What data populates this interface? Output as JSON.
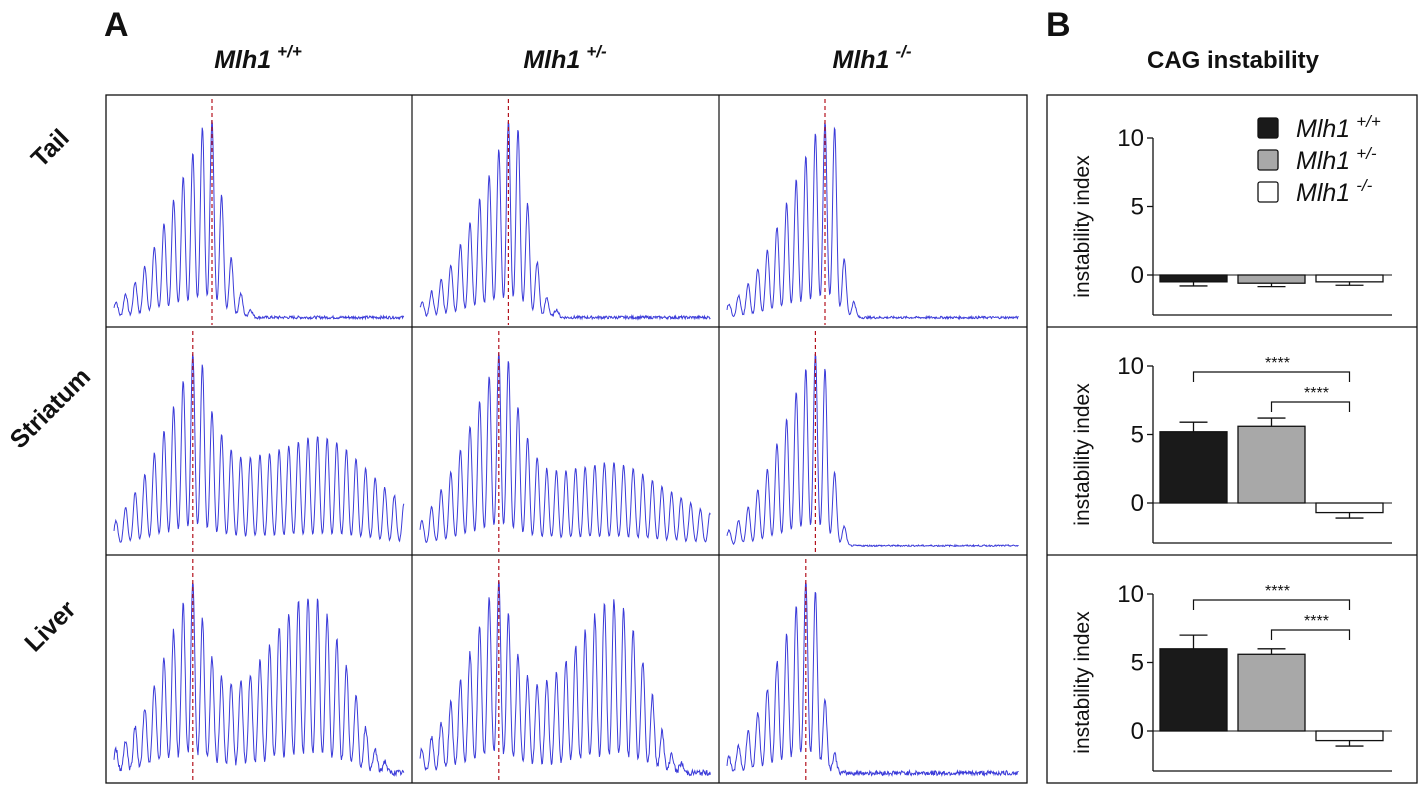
{
  "panels": {
    "a_label": "A",
    "b_label": "B"
  },
  "genotypes": [
    {
      "base": "Mlh1",
      "sup": "+/+"
    },
    {
      "base": "Mlh1",
      "sup": "+/-"
    },
    {
      "base": "Mlh1",
      "sup": "-/-"
    }
  ],
  "tissues": [
    "Tail",
    "Striatum",
    "Liver"
  ],
  "panel_b": {
    "title": "CAG instability",
    "ylabel": "instability index",
    "yticks": [
      "10",
      "5",
      "0"
    ]
  },
  "colors": {
    "trace": "#3b3bd9",
    "reference_line": "#b3121d",
    "bar_wt": "#1a1a1a",
    "bar_het": "#a8a8a8",
    "bar_ko": "#ffffff"
  },
  "chart_data": [
    {
      "type": "line",
      "description_of_traces": "capillary electrophoresis CAG repeat traces, relative peak heights",
      "rows": [
        {
          "tissue": "Tail",
          "traces": [
            {
              "genotype": "+/+",
              "peaks": [
                0.08,
                0.12,
                0.18,
                0.26,
                0.36,
                0.48,
                0.6,
                0.72,
                0.84,
                0.97,
                1.0,
                0.62,
                0.3,
                0.12,
                0.04
              ],
              "expansion": [],
              "noise": 0.015
            },
            {
              "genotype": "+/-",
              "peaks": [
                0.08,
                0.13,
                0.19,
                0.27,
                0.37,
                0.48,
                0.6,
                0.72,
                0.85,
                1.0,
                0.96,
                0.58,
                0.28,
                0.1,
                0.04
              ],
              "expansion": [],
              "noise": 0.015
            },
            {
              "genotype": "-/-",
              "peaks": [
                0.07,
                0.11,
                0.17,
                0.25,
                0.34,
                0.46,
                0.58,
                0.7,
                0.82,
                0.94,
                1.0,
                0.97,
                0.3,
                0.08
              ],
              "expansion": [],
              "noise": 0.012
            }
          ]
        },
        {
          "tissue": "Striatum",
          "traces": [
            {
              "genotype": "+/+",
              "peaks": [
                0.13,
                0.2,
                0.28,
                0.37,
                0.48,
                0.6,
                0.72,
                0.86,
                1.0,
                0.94,
                0.7,
                0.58,
                0.5
              ],
              "expansion": [
                0.46,
                0.46,
                0.47,
                0.48,
                0.5,
                0.52,
                0.54,
                0.56,
                0.57,
                0.56,
                0.54,
                0.5,
                0.45,
                0.4,
                0.35,
                0.3,
                0.26,
                0.22,
                0.19,
                0.16,
                0.13,
                0.11,
                0.09,
                0.08,
                0.07
              ],
              "noise": 0.01
            },
            {
              "genotype": "+/-",
              "peaks": [
                0.13,
                0.2,
                0.29,
                0.38,
                0.5,
                0.62,
                0.75,
                0.88,
                1.0,
                0.96,
                0.72,
                0.56,
                0.46
              ],
              "expansion": [
                0.4,
                0.39,
                0.39,
                0.4,
                0.41,
                0.42,
                0.43,
                0.43,
                0.42,
                0.4,
                0.37,
                0.34,
                0.31,
                0.28,
                0.25,
                0.22,
                0.19,
                0.17,
                0.15,
                0.13,
                0.11,
                0.09,
                0.08,
                0.07
              ],
              "noise": 0.01
            },
            {
              "genotype": "-/-",
              "peaks": [
                0.08,
                0.13,
                0.2,
                0.29,
                0.4,
                0.53,
                0.66,
                0.8,
                0.92,
                1.0,
                0.92,
                0.38,
                0.1
              ],
              "expansion": [],
              "noise": 0.008
            }
          ]
        },
        {
          "tissue": "Liver",
          "traces": [
            {
              "genotype": "+/+",
              "peaks": [
                0.12,
                0.17,
                0.24,
                0.34,
                0.46,
                0.6,
                0.74,
                0.88,
                1.0,
                0.8,
                0.6,
                0.5
              ],
              "expansion": [
                0.46,
                0.48,
                0.52,
                0.58,
                0.66,
                0.75,
                0.83,
                0.9,
                0.92,
                0.9,
                0.82,
                0.7,
                0.56,
                0.4,
                0.24,
                0.12,
                0.06
              ],
              "noise": 0.03
            },
            {
              "genotype": "+/-",
              "peaks": [
                0.12,
                0.18,
                0.26,
                0.36,
                0.48,
                0.62,
                0.76,
                0.9,
                1.0,
                0.82,
                0.62,
                0.5
              ],
              "expansion": [
                0.46,
                0.48,
                0.52,
                0.58,
                0.66,
                0.74,
                0.82,
                0.88,
                0.9,
                0.85,
                0.74,
                0.58,
                0.4,
                0.22,
                0.1,
                0.05
              ],
              "noise": 0.03
            },
            {
              "genotype": "-/-",
              "peaks": [
                0.08,
                0.14,
                0.22,
                0.32,
                0.44,
                0.58,
                0.72,
                0.86,
                1.0,
                0.94,
                0.38,
                0.1
              ],
              "expansion": [],
              "noise": 0.025
            }
          ]
        }
      ]
    },
    {
      "type": "bar",
      "title": "CAG instability",
      "ylabel": "instability index",
      "ylim": [
        -3,
        12
      ],
      "yticks": [
        0,
        5,
        10
      ],
      "categories": [
        "Mlh1 +/+",
        "Mlh1 +/-",
        "Mlh1 -/-"
      ],
      "legend": [
        {
          "base": "Mlh1",
          "sup": "+/+",
          "color": "#1a1a1a"
        },
        {
          "base": "Mlh1",
          "sup": "+/-",
          "color": "#a8a8a8"
        },
        {
          "base": "Mlh1",
          "sup": "-/-",
          "color": "#ffffff"
        }
      ],
      "legend_position": "top-right",
      "rows": [
        {
          "tissue": "Tail",
          "values": [
            -0.5,
            -0.6,
            -0.5
          ],
          "errors": [
            0.3,
            0.25,
            0.25
          ],
          "significance": []
        },
        {
          "tissue": "Striatum",
          "values": [
            5.2,
            5.6,
            -0.7
          ],
          "errors": [
            0.7,
            0.6,
            0.4
          ],
          "significance": [
            {
              "from": 0,
              "to": 2,
              "label": "****"
            },
            {
              "from": 1,
              "to": 2,
              "label": "****"
            }
          ]
        },
        {
          "tissue": "Liver",
          "values": [
            6.0,
            5.6,
            -0.7
          ],
          "errors": [
            1.0,
            0.4,
            0.4
          ],
          "significance": [
            {
              "from": 0,
              "to": 2,
              "label": "****"
            },
            {
              "from": 1,
              "to": 2,
              "label": "****"
            }
          ]
        }
      ]
    }
  ]
}
